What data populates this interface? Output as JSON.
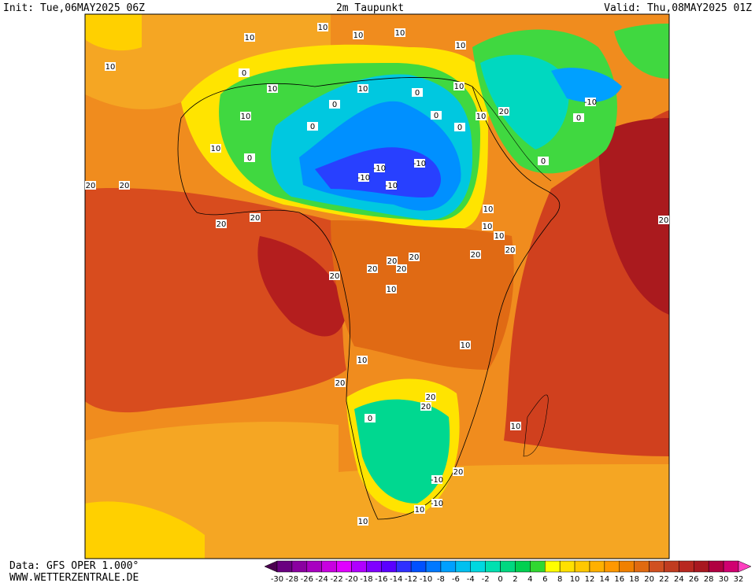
{
  "header": {
    "init": "Init: Tue,06MAY2025 06Z",
    "title": "2m Taupunkt",
    "valid": "Valid: Thu,08MAY2025 01Z"
  },
  "footer": {
    "source": "Data: GFS OPER 1.000°",
    "website": "WWW.WETTERZENTRALE.DE"
  },
  "scale": {
    "labels": [
      -30,
      -28,
      -26,
      -24,
      -22,
      -20,
      -18,
      -16,
      -14,
      -12,
      -10,
      -8,
      -6,
      -4,
      -2,
      0,
      2,
      4,
      6,
      8,
      10,
      12,
      14,
      16,
      18,
      20,
      22,
      24,
      26,
      28,
      30,
      32
    ],
    "colors": [
      "#4b0050",
      "#6a0080",
      "#8a00a0",
      "#a800c0",
      "#c800e0",
      "#e000ff",
      "#b000ff",
      "#8000ff",
      "#5a00ff",
      "#3030ff",
      "#0050ff",
      "#0078ff",
      "#00a0ff",
      "#00c0f0",
      "#00d8e0",
      "#00e0b0",
      "#00d880",
      "#00d050",
      "#30d830",
      "#ffff00",
      "#ffe000",
      "#ffc800",
      "#ffb000",
      "#ff9800",
      "#f08000",
      "#e06a10",
      "#d05020",
      "#c03c20",
      "#b82820",
      "#a81820",
      "#b00040",
      "#d00070",
      "#ff40c0"
    ]
  },
  "contours": [
    "10",
    "10",
    "10",
    "10",
    "10",
    "10",
    "0",
    "10",
    "0",
    "10",
    "0",
    "0",
    "0",
    "0",
    "10",
    "10",
    "20",
    "-10",
    "-10",
    "-10",
    "-10",
    "-10",
    "10",
    "10",
    "0",
    "20",
    "20",
    "20",
    "20",
    "20",
    "20",
    "20",
    "20",
    "20",
    "10",
    "10",
    "20",
    "10",
    "10",
    "0",
    "0",
    "20",
    "20",
    "10",
    "10",
    "20",
    "20",
    "20",
    "10",
    "0",
    "-10",
    "-10",
    "20",
    "10",
    "10"
  ]
}
